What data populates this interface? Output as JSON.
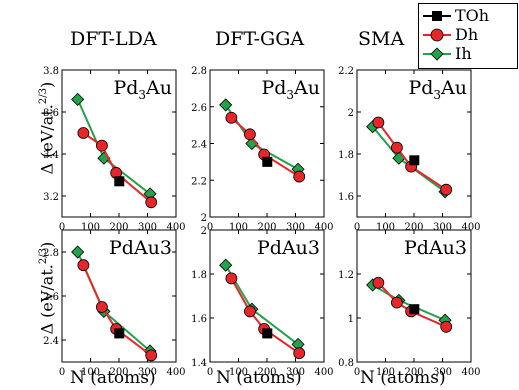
{
  "column_titles": [
    "DFT-LDA",
    "DFT-GGA",
    "SMA"
  ],
  "ylabel": "Δ (eV/at.",
  "ylabel_power": "2/3",
  "ylabel_close": ")",
  "xlabel": "N (atoms)",
  "legend": [
    {
      "label": "TOh",
      "color": "#000000",
      "marker": "square"
    },
    {
      "label": "Dh",
      "color": "#e8262a",
      "marker": "circle"
    },
    {
      "label": "Ih",
      "color": "#22a24a",
      "marker": "diamond"
    }
  ],
  "colors": {
    "TOh": "#000000",
    "Dh": "#e8262a",
    "Ih": "#22a24a"
  },
  "chart_data": [
    {
      "type": "line",
      "composition_label": "Pd3Au",
      "method": "DFT-LDA",
      "xlim": [
        0,
        400
      ],
      "ylim": [
        3.1,
        3.8
      ],
      "xticks": [
        0,
        100,
        200,
        300,
        400
      ],
      "yticks": [
        3.2,
        3.4,
        3.6,
        3.8
      ],
      "series": [
        {
          "name": "Dh",
          "x": [
            75,
            140,
            190,
            313
          ],
          "y": [
            3.5,
            3.44,
            3.31,
            3.17
          ]
        },
        {
          "name": "Ih",
          "x": [
            55,
            147,
            309
          ],
          "y": [
            3.66,
            3.38,
            3.21
          ]
        },
        {
          "name": "TOh",
          "x": [
            201
          ],
          "y": [
            3.27
          ]
        }
      ]
    },
    {
      "type": "line",
      "composition_label": "Pd3Au",
      "method": "DFT-GGA",
      "xlim": [
        0,
        400
      ],
      "ylim": [
        2.0,
        2.8
      ],
      "xticks": [
        0,
        100,
        200,
        300,
        400
      ],
      "yticks": [
        2.0,
        2.2,
        2.4,
        2.6,
        2.8
      ],
      "series": [
        {
          "name": "Dh",
          "x": [
            75,
            140,
            190,
            313
          ],
          "y": [
            2.54,
            2.45,
            2.34,
            2.22
          ]
        },
        {
          "name": "Ih",
          "x": [
            55,
            147,
            309
          ],
          "y": [
            2.61,
            2.4,
            2.26
          ]
        },
        {
          "name": "TOh",
          "x": [
            201
          ],
          "y": [
            2.3
          ]
        }
      ]
    },
    {
      "type": "line",
      "composition_label": "Pd3Au",
      "method": "SMA",
      "xlim": [
        0,
        400
      ],
      "ylim": [
        1.5,
        2.2
      ],
      "xticks": [
        0,
        100,
        200,
        300,
        400
      ],
      "yticks": [
        1.6,
        1.8,
        2.0,
        2.2
      ],
      "series": [
        {
          "name": "Dh",
          "x": [
            75,
            140,
            190,
            313
          ],
          "y": [
            1.95,
            1.83,
            1.74,
            1.63
          ]
        },
        {
          "name": "Ih",
          "x": [
            55,
            147,
            309
          ],
          "y": [
            1.93,
            1.78,
            1.62
          ]
        },
        {
          "name": "TOh",
          "x": [
            201
          ],
          "y": [
            1.77
          ]
        }
      ]
    },
    {
      "type": "line",
      "composition_label": "PdAu3",
      "method": "DFT-LDA",
      "xlim": [
        0,
        400
      ],
      "ylim": [
        2.3,
        2.9
      ],
      "xticks": [
        0,
        100,
        200,
        300,
        400
      ],
      "yticks": [
        2.4,
        2.6,
        2.8
      ],
      "series": [
        {
          "name": "Dh",
          "x": [
            75,
            140,
            190,
            313
          ],
          "y": [
            2.74,
            2.55,
            2.45,
            2.33
          ]
        },
        {
          "name": "Ih",
          "x": [
            55,
            147,
            309
          ],
          "y": [
            2.8,
            2.53,
            2.35
          ]
        },
        {
          "name": "TOh",
          "x": [
            201
          ],
          "y": [
            2.43
          ]
        }
      ]
    },
    {
      "type": "line",
      "composition_label": "PdAu3",
      "method": "DFT-GGA",
      "xlim": [
        0,
        400
      ],
      "ylim": [
        1.4,
        2.0
      ],
      "xticks": [
        0,
        100,
        200,
        300,
        400
      ],
      "yticks": [
        1.4,
        1.6,
        1.8,
        2.0
      ],
      "series": [
        {
          "name": "Dh",
          "x": [
            75,
            140,
            190,
            313
          ],
          "y": [
            1.78,
            1.63,
            1.55,
            1.44
          ]
        },
        {
          "name": "Ih",
          "x": [
            55,
            147,
            309
          ],
          "y": [
            1.84,
            1.64,
            1.48
          ]
        },
        {
          "name": "TOh",
          "x": [
            201
          ],
          "y": [
            1.53
          ]
        }
      ]
    },
    {
      "type": "line",
      "composition_label": "PdAu3",
      "method": "SMA",
      "xlim": [
        0,
        400
      ],
      "ylim": [
        0.8,
        1.4
      ],
      "xticks": [
        0,
        100,
        200,
        300,
        400
      ],
      "yticks": [
        0.8,
        1.0,
        1.2
      ],
      "series": [
        {
          "name": "Dh",
          "x": [
            75,
            140,
            190,
            313
          ],
          "y": [
            1.16,
            1.07,
            1.03,
            0.96
          ]
        },
        {
          "name": "Ih",
          "x": [
            55,
            147,
            309
          ],
          "y": [
            1.15,
            1.08,
            0.99
          ]
        },
        {
          "name": "TOh",
          "x": [
            201
          ],
          "y": [
            1.04
          ]
        }
      ]
    }
  ]
}
